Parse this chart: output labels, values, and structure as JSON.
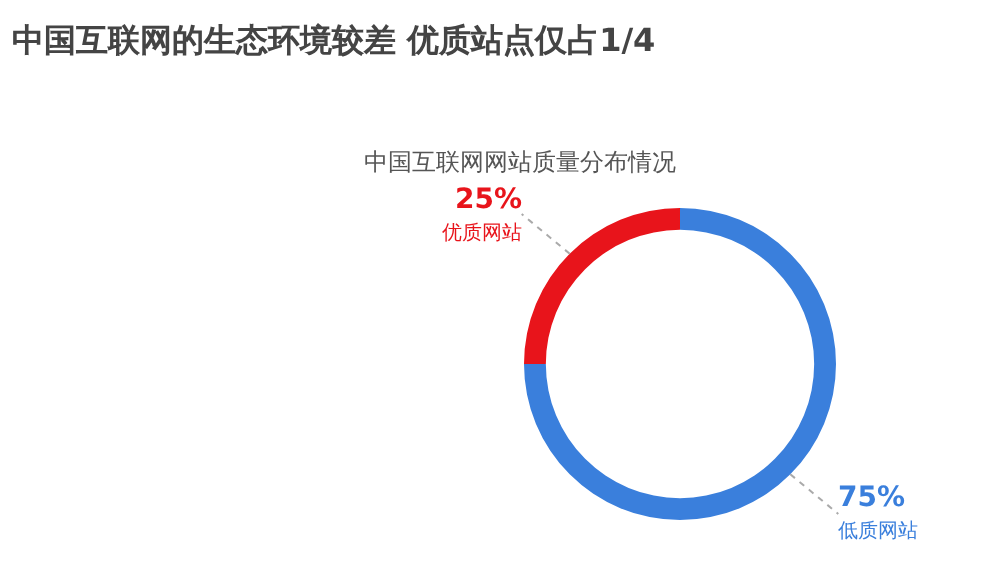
{
  "chart_data": {
    "type": "donut",
    "title": "中国互联网的生态环境较差 优质站点仅占1/4",
    "subtitle": "中国互联网网站质量分布情况",
    "categories": [
      "优质网站",
      "低质网站"
    ],
    "values": [
      25,
      75
    ],
    "value_labels": [
      "25%",
      "75%"
    ],
    "colors": [
      "#e8141b",
      "#3a7fdc"
    ],
    "legend": false
  }
}
